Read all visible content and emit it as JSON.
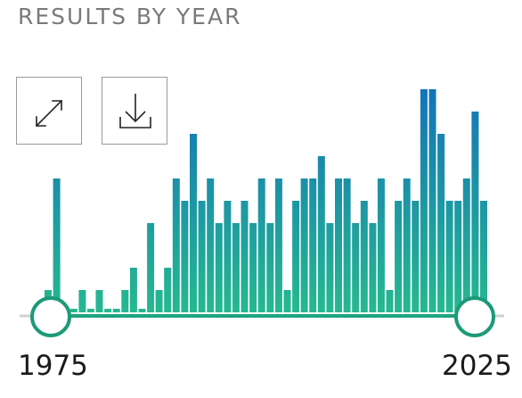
{
  "widget": {
    "title": "RESULTS BY YEAR",
    "expand_icon": "expand-arrows-icon",
    "download_icon": "download-tray-icon"
  },
  "slider": {
    "min_year": 1975,
    "max_year": 2025,
    "selected_start": 1975,
    "selected_end": 2025,
    "start_label": "1975",
    "end_label": "2025"
  },
  "colors": {
    "bar_top": "#1474b8",
    "bar_bottom": "#26b890",
    "track": "#1fa37f",
    "handle_border": "#1c9a78",
    "rail": "#d0d0d0"
  },
  "chart_data": {
    "type": "bar",
    "x": [
      1975,
      1976,
      1977,
      1978,
      1979,
      1980,
      1981,
      1982,
      1983,
      1984,
      1985,
      1986,
      1987,
      1988,
      1989,
      1990,
      1991,
      1992,
      1993,
      1994,
      1995,
      1996,
      1997,
      1998,
      1999,
      2000,
      2001,
      2002,
      2003,
      2004,
      2005,
      2006,
      2007,
      2008,
      2009,
      2010,
      2011,
      2012,
      2013,
      2014,
      2015,
      2016,
      2017,
      2018,
      2019,
      2020,
      2021,
      2022,
      2023,
      2024
    ],
    "values": [
      1,
      6,
      0,
      0,
      1,
      0,
      1,
      0,
      0,
      1,
      2,
      0,
      4,
      1,
      2,
      6,
      5,
      8,
      5,
      6,
      4,
      5,
      4,
      5,
      4,
      6,
      4,
      6,
      1,
      5,
      6,
      6,
      7,
      4,
      6,
      6,
      4,
      5,
      4,
      6,
      1,
      5,
      6,
      5,
      10,
      10,
      8,
      5,
      5,
      6
    ],
    "extra_values": [
      [
        2024,
        9
      ],
      [
        2025,
        5
      ]
    ],
    "ylim": [
      0,
      10
    ]
  }
}
